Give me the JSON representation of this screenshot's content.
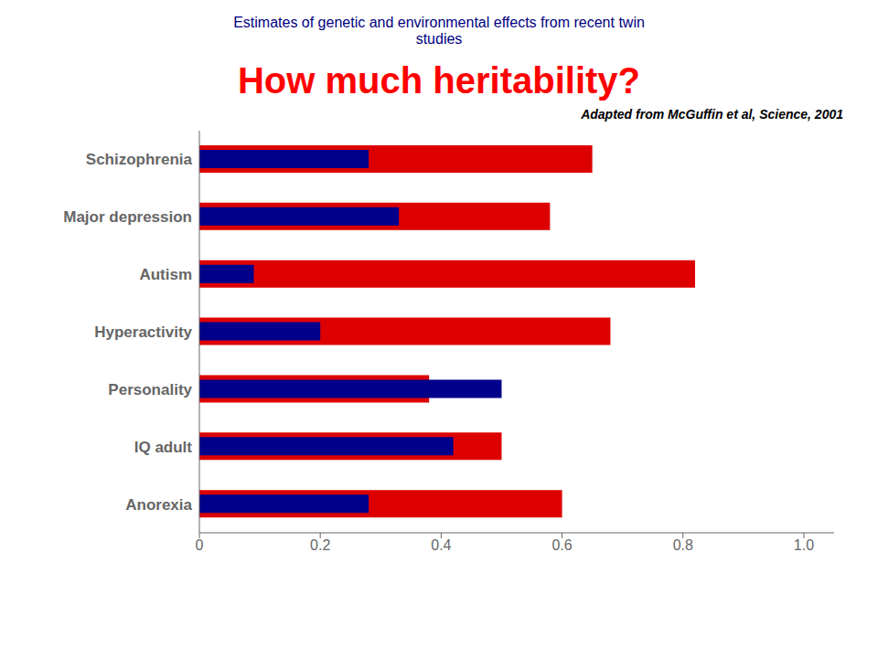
{
  "chart_data": {
    "type": "bar",
    "orientation": "horizontal",
    "title": "How much heritability?",
    "subtitle": "Estimates of genetic and environmental effects from recent twin\nstudies",
    "annotations": [
      "Adapted from McGuffin et al, Science, 2001"
    ],
    "categories": [
      "Schizophrenia",
      "Major depression",
      "Autism",
      "Hyperactivity",
      "Personality",
      "IQ adult",
      "Anorexia"
    ],
    "series": [
      {
        "color": "#DD0000",
        "values": [
          0.65,
          0.58,
          0.82,
          0.68,
          0.38,
          0.5,
          0.6
        ]
      },
      {
        "color": "#00008B",
        "values": [
          0.28,
          0.33,
          0.09,
          0.2,
          0.5,
          0.42,
          0.28
        ]
      }
    ],
    "xlim": [
      0,
      1.05
    ],
    "xticks": [
      0,
      0.2,
      0.4,
      0.6,
      0.8,
      {
        "value": 1.0,
        "label": "1.0"
      }
    ],
    "grid": false
  }
}
